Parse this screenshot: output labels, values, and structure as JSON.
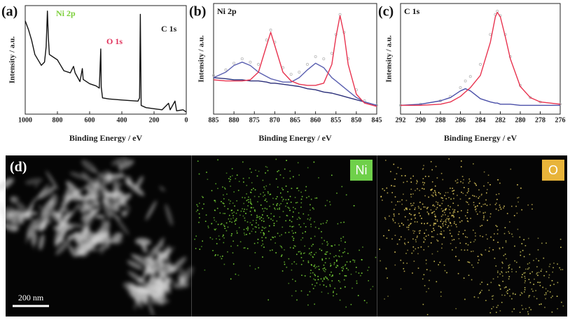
{
  "chart_data": [
    {
      "type": "line",
      "panel_label": "(a)",
      "x_label": "Binding Energy / eV",
      "y_label": "Intensity / a.u.",
      "xlim": [
        1000,
        0
      ],
      "xticks": [
        1000,
        800,
        600,
        400,
        200,
        0
      ],
      "ylim": [
        0,
        100
      ],
      "annotations": [
        {
          "text": "Ni 2p",
          "color": "#7ccf3a"
        },
        {
          "text": "O 1s",
          "color": "#e0305a"
        },
        {
          "text": "C 1s",
          "color": "#222222"
        }
      ],
      "x": [
        1000,
        980,
        960,
        940,
        900,
        880,
        870,
        862,
        856,
        850,
        800,
        780,
        760,
        720,
        700,
        690,
        660,
        645,
        640,
        600,
        560,
        540,
        531,
        528,
        520,
        480,
        400,
        300,
        290,
        285,
        280,
        250,
        200,
        150,
        110,
        100,
        70,
        60,
        20,
        0
      ],
      "series": [
        {
          "color": "#111111",
          "values": [
            86,
            78,
            68,
            55,
            45,
            48,
            62,
            95,
            70,
            55,
            50,
            45,
            40,
            38,
            44,
            38,
            30,
            42,
            32,
            28,
            26,
            24,
            60,
            25,
            15,
            14,
            13,
            12,
            15,
            92,
            8,
            6,
            5,
            4,
            10,
            4,
            12,
            3,
            4,
            2
          ]
        }
      ]
    },
    {
      "type": "line",
      "panel_label": "(b)",
      "title": "Ni 2p",
      "x_label": "Binding Energy / eV",
      "y_label": "Intensity / a.u.",
      "xlim": [
        885,
        845
      ],
      "xticks": [
        885,
        880,
        875,
        870,
        865,
        860,
        855,
        850,
        845
      ],
      "ylim": [
        0,
        100
      ],
      "x": [
        885,
        882,
        880,
        878,
        876,
        874,
        872,
        871,
        870,
        868,
        866,
        864,
        862,
        860,
        858,
        856,
        855,
        854,
        853,
        852,
        850,
        848,
        845
      ],
      "series": [
        {
          "color": "#b8b8b8",
          "style": "points",
          "values": [
            35,
            40,
            46,
            50,
            47,
            45,
            67,
            76,
            65,
            42,
            36,
            38,
            45,
            52,
            50,
            55,
            72,
            90,
            74,
            50,
            22,
            12,
            8
          ]
        },
        {
          "color": "#2b2f7a",
          "values": [
            33,
            32,
            31,
            31,
            30,
            30,
            29,
            28,
            28,
            27,
            26,
            25,
            23,
            22,
            20,
            19,
            18,
            17,
            16,
            15,
            13,
            11,
            8
          ]
        },
        {
          "color": "#5a5fb0",
          "values": [
            33,
            38,
            44,
            47,
            44,
            38,
            34,
            32,
            31,
            29,
            29,
            33,
            40,
            46,
            42,
            33,
            30,
            27,
            24,
            21,
            15,
            11,
            8
          ]
        },
        {
          "color": "#e8334f",
          "values": [
            31,
            30,
            30,
            30,
            31,
            38,
            62,
            74,
            62,
            38,
            30,
            27,
            26,
            26,
            28,
            45,
            70,
            89,
            72,
            45,
            18,
            10,
            7
          ]
        }
      ]
    },
    {
      "type": "line",
      "panel_label": "(c)",
      "title": "C 1s",
      "x_label": "Binding Energy / eV",
      "y_label": "Intensity / a.u.",
      "xlim": [
        292,
        276
      ],
      "xticks": [
        292,
        290,
        288,
        286,
        284,
        282,
        280,
        278,
        276
      ],
      "ylim": [
        0,
        100
      ],
      "x": [
        292,
        290,
        288,
        287,
        286,
        285.5,
        285,
        284,
        283,
        282.5,
        282.3,
        282,
        281.5,
        281,
        280,
        279,
        278,
        276
      ],
      "series": [
        {
          "color": "#b8b8b8",
          "style": "points",
          "values": [
            8,
            9,
            12,
            16,
            24,
            30,
            34,
            45,
            72,
            90,
            93,
            89,
            72,
            52,
            26,
            15,
            11,
            9
          ]
        },
        {
          "color": "#4a4fa8",
          "values": [
            8,
            9,
            12,
            15,
            21,
            23,
            21,
            14,
            11,
            10,
            10,
            9,
            9,
            9,
            8,
            8,
            8,
            8
          ]
        },
        {
          "color": "#e8334f",
          "values": [
            8,
            8,
            9,
            11,
            16,
            20,
            24,
            35,
            65,
            88,
            92,
            88,
            70,
            50,
            25,
            15,
            11,
            9
          ]
        }
      ]
    }
  ],
  "images": {
    "panel_label": "(d)",
    "scale_bar": "200 nm",
    "tags": [
      "Ni",
      "O"
    ]
  }
}
